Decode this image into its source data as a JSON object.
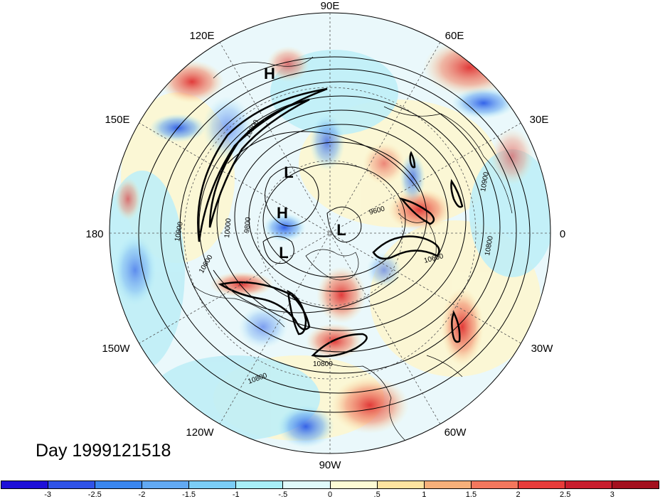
{
  "title": "Day 1999121518",
  "longitude_labels": [
    "90E",
    "60E",
    "30E",
    "0",
    "30W",
    "60W",
    "90W",
    "120W",
    "150W",
    "180",
    "150E",
    "120E"
  ],
  "pressure_centers": [
    {
      "label": "H",
      "id": "h1"
    },
    {
      "label": "L",
      "id": "l1"
    },
    {
      "label": "H",
      "id": "h2"
    },
    {
      "label": "L",
      "id": "l2"
    },
    {
      "label": "L",
      "id": "l3"
    }
  ],
  "contour_labels": [
    "10900",
    "10800",
    "10600",
    "10000",
    "9800",
    "9600",
    "10800",
    "10600",
    "10800",
    "10900",
    "10800"
  ],
  "colorbar": {
    "ticks": [
      "-3",
      "-2.5",
      "-2",
      "-1.5",
      "-1",
      "-.5",
      "0",
      ".5",
      "1",
      "1.5",
      "2",
      "2.5",
      "3"
    ],
    "colors": [
      "#1e10d8",
      "#3053e8",
      "#3a86ef",
      "#62a9f2",
      "#7bcdf6",
      "#a8eff8",
      "#e0fafa",
      "#fdfbd4",
      "#fde3a0",
      "#f7b07a",
      "#f3775d",
      "#e83c3a",
      "#c81e2e",
      "#a3101e"
    ]
  }
}
